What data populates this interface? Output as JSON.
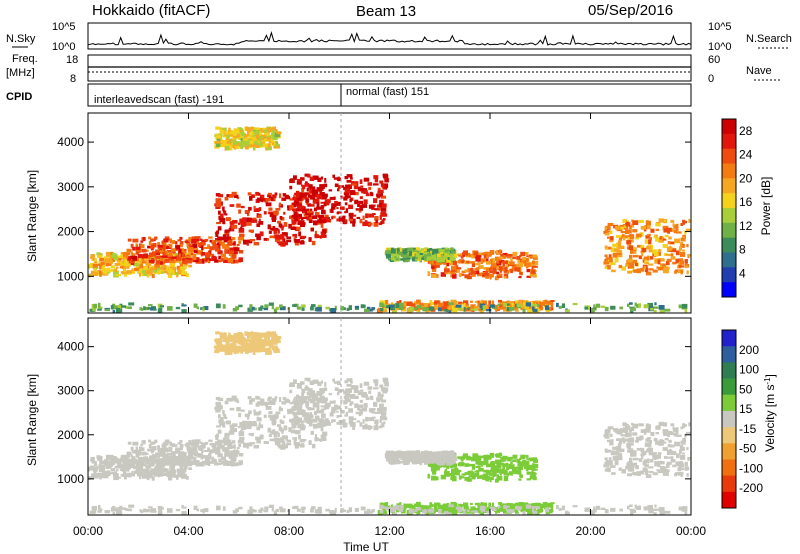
{
  "header": {
    "station": "Hokkaido (fitACF)",
    "beam": "Beam 13",
    "date": "05/Sep/2016"
  },
  "colors": {
    "power_scale": [
      "#0000ff",
      "#1f3fae",
      "#2e6e8e",
      "#3c8c5a",
      "#6fb047",
      "#a8cf3a",
      "#f2d21a",
      "#f5a623",
      "#f47a12",
      "#ee4b0e",
      "#e2170b",
      "#cc0000"
    ],
    "velocity_scale": [
      "#2222cc",
      "#2d5e9e",
      "#2f7d52",
      "#3a9b3a",
      "#7ccc3a",
      "#c8c8c0",
      "#ecc878",
      "#f0a030",
      "#f07010",
      "#e83a0a",
      "#e00000"
    ]
  },
  "ui": {
    "nsky_label": "N.Sky",
    "nsearch_label": "N.Search",
    "freq_label_1": "Freq.",
    "freq_label_2": "[MHz]",
    "nave_label": "Nave",
    "cpid_label": "CPID",
    "cpid_1": "interleavedscan (fast) -191",
    "cpid_2": "normal (fast) 151",
    "noise_left_ticks": [
      "10^5",
      "10^0"
    ],
    "noise_right_ticks": [
      "10^5",
      "10^0"
    ],
    "freq_ticks": [
      "18",
      "8"
    ],
    "nave_ticks": [
      "60",
      "0"
    ]
  },
  "chart_data": [
    {
      "type": "heatmap",
      "title": "",
      "xlabel": "Time UT",
      "ylabel": "Slant Range [km]",
      "x_ticks": [
        "00:00",
        "04:00",
        "08:00",
        "12:00",
        "16:00",
        "20:00",
        "00:00"
      ],
      "y_ticks": [
        1000,
        2000,
        3000,
        4000
      ],
      "xlim": [
        0,
        24
      ],
      "ylim": [
        180,
        4650
      ],
      "colorbar_label": "Power [dB]",
      "colorbar_ticks": [
        4,
        8,
        12,
        16,
        20,
        24,
        28
      ],
      "colorbar_range": [
        0,
        30
      ],
      "regions": [
        {
          "t": [
            0.0,
            4.0
          ],
          "r": [
            1050,
            1550
          ],
          "value": 18
        },
        {
          "t": [
            1.5,
            6.0
          ],
          "r": [
            1350,
            1900
          ],
          "value": 24
        },
        {
          "t": [
            5.0,
            9.5
          ],
          "r": [
            1750,
            2900
          ],
          "value": 27
        },
        {
          "t": [
            8.0,
            11.8
          ],
          "r": [
            2200,
            3300
          ],
          "value": 28
        },
        {
          "t": [
            5.0,
            7.5
          ],
          "r": [
            3900,
            4350
          ],
          "value": 16
        },
        {
          "t": [
            13.5,
            17.8
          ],
          "r": [
            1000,
            1600
          ],
          "value": 22
        },
        {
          "t": [
            11.8,
            14.5
          ],
          "r": [
            1400,
            1650
          ],
          "value": 12
        },
        {
          "t": [
            11.5,
            18.5
          ],
          "r": [
            260,
            480
          ],
          "value": 20
        },
        {
          "t": [
            0.0,
            24.0
          ],
          "r": [
            200,
            420
          ],
          "value": 10
        },
        {
          "t": [
            20.5,
            24.0
          ],
          "r": [
            1100,
            2300
          ],
          "value": 20
        }
      ]
    },
    {
      "type": "heatmap",
      "title": "",
      "xlabel": "Time UT",
      "ylabel": "Slant Range [km]",
      "x_ticks": [
        "00:00",
        "04:00",
        "08:00",
        "12:00",
        "16:00",
        "20:00",
        "00:00"
      ],
      "y_ticks": [
        1000,
        2000,
        3000,
        4000
      ],
      "xlim": [
        0,
        24
      ],
      "ylim": [
        180,
        4650
      ],
      "colorbar_label": "Velocity [m s^-1]",
      "colorbar_ticks": [
        200,
        100,
        50,
        15,
        -15,
        -50,
        -100,
        -200
      ],
      "colorbar_range": [
        -250,
        250
      ],
      "regions": [
        {
          "t": [
            0.0,
            4.0
          ],
          "r": [
            1050,
            1550
          ],
          "value": 0
        },
        {
          "t": [
            1.5,
            6.0
          ],
          "r": [
            1350,
            1900
          ],
          "value": 0
        },
        {
          "t": [
            5.0,
            9.5
          ],
          "r": [
            1750,
            2900
          ],
          "value": -10
        },
        {
          "t": [
            8.0,
            11.8
          ],
          "r": [
            2200,
            3300
          ],
          "value": 0
        },
        {
          "t": [
            5.0,
            7.5
          ],
          "r": [
            3900,
            4350
          ],
          "value": -30
        },
        {
          "t": [
            13.5,
            17.8
          ],
          "r": [
            1000,
            1600
          ],
          "value": 40
        },
        {
          "t": [
            11.8,
            14.5
          ],
          "r": [
            1400,
            1650
          ],
          "value": 0
        },
        {
          "t": [
            11.5,
            18.5
          ],
          "r": [
            260,
            480
          ],
          "value": 40
        },
        {
          "t": [
            0.0,
            24.0
          ],
          "r": [
            200,
            420
          ],
          "value": 10
        },
        {
          "t": [
            20.5,
            24.0
          ],
          "r": [
            1100,
            2300
          ],
          "value": 0
        }
      ]
    }
  ]
}
